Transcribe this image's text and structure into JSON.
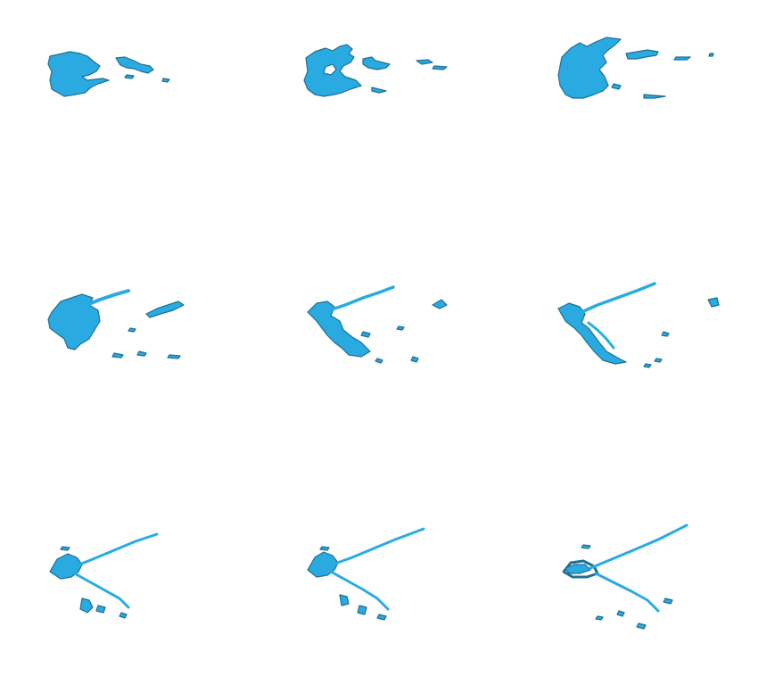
{
  "figure": {
    "panels": [
      {
        "id": "frame-1"
      },
      {
        "id": "frame-2"
      },
      {
        "id": "frame-3"
      },
      {
        "id": "frame-4"
      },
      {
        "id": "frame-5"
      },
      {
        "id": "frame-6"
      },
      {
        "id": "frame-7"
      },
      {
        "id": "frame-8"
      },
      {
        "id": "frame-9"
      }
    ],
    "colors": {
      "fill": "#29abe2",
      "edge": "#1f6f93",
      "background": "#ffffff"
    }
  }
}
